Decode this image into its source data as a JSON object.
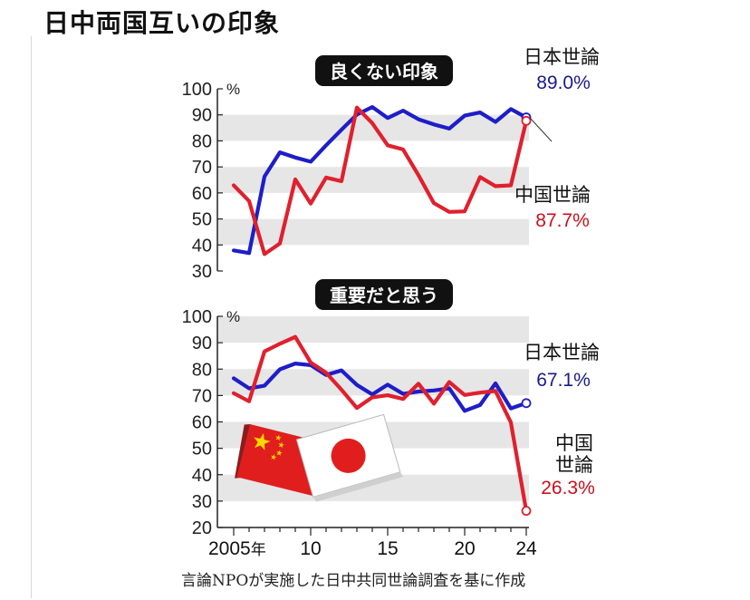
{
  "page": {
    "title": "日中両国互いの印象",
    "source": "言論NPOが実施した日中共同世論調査を基に作成"
  },
  "colors": {
    "japan": "#1e1ec8",
    "china": "#e0202e",
    "japan_text": "#1a1a8c",
    "china_text": "#c8101e",
    "band": "#e6e6e6",
    "badge": "#111111"
  },
  "chart_data": [
    {
      "type": "line",
      "title": "良くない印象",
      "y_unit": "%",
      "ylim": [
        30,
        100
      ],
      "yticks": [
        30,
        40,
        50,
        60,
        70,
        80,
        90,
        100
      ],
      "xlim": [
        2005,
        2024
      ],
      "grid": "alternating horizontal bands",
      "series": [
        {
          "name": "日本世論",
          "label_value": "89.0%",
          "points": [
            [
              2005,
              37.9
            ],
            [
              2006,
              36.9
            ],
            [
              2007,
              66.3
            ],
            [
              2008,
              75.6
            ],
            [
              2009,
              73.6
            ],
            [
              2010,
              72.0
            ],
            [
              2011,
              78.3
            ],
            [
              2012,
              84.3
            ],
            [
              2013,
              90.1
            ],
            [
              2014,
              93.0
            ],
            [
              2015,
              88.8
            ],
            [
              2016,
              91.6
            ],
            [
              2017,
              88.3
            ],
            [
              2018,
              86.3
            ],
            [
              2019,
              84.7
            ],
            [
              2020,
              89.7
            ],
            [
              2021,
              90.9
            ],
            [
              2022,
              87.3
            ],
            [
              2023,
              92.2
            ],
            [
              2024,
              89.0
            ]
          ]
        },
        {
          "name": "中国世論",
          "label_value": "87.7%",
          "points": [
            [
              2005,
              62.9
            ],
            [
              2006,
              56.9
            ],
            [
              2007,
              36.5
            ],
            [
              2008,
              40.6
            ],
            [
              2009,
              65.2
            ],
            [
              2010,
              55.9
            ],
            [
              2011,
              65.9
            ],
            [
              2012,
              64.5
            ],
            [
              2013,
              92.8
            ],
            [
              2014,
              86.8
            ],
            [
              2015,
              78.3
            ],
            [
              2016,
              76.7
            ],
            [
              2017,
              66.8
            ],
            [
              2018,
              56.1
            ],
            [
              2019,
              52.7
            ],
            [
              2020,
              52.9
            ],
            [
              2021,
              66.1
            ],
            [
              2022,
              62.6
            ],
            [
              2023,
              62.9
            ],
            [
              2024,
              87.7
            ]
          ]
        }
      ]
    },
    {
      "type": "line",
      "title": "重要だと思う",
      "y_unit": "%",
      "ylim": [
        20,
        100
      ],
      "yticks": [
        20,
        30,
        40,
        50,
        60,
        70,
        80,
        90,
        100
      ],
      "xlim": [
        2005,
        2024
      ],
      "xticks": [
        2005,
        2010,
        2015,
        2020,
        2024
      ],
      "xtick_labels": [
        "2005年",
        "10",
        "15",
        "20",
        "24"
      ],
      "grid": "alternating horizontal bands",
      "series": [
        {
          "name": "日本世論",
          "label_value": "67.1%",
          "points": [
            [
              2005,
              76.5
            ],
            [
              2006,
              72.7
            ],
            [
              2007,
              73.7
            ],
            [
              2008,
              79.9
            ],
            [
              2009,
              82.1
            ],
            [
              2010,
              81.5
            ],
            [
              2011,
              77.8
            ],
            [
              2012,
              79.5
            ],
            [
              2013,
              74.0
            ],
            [
              2014,
              70.4
            ],
            [
              2015,
              74.1
            ],
            [
              2016,
              70.6
            ],
            [
              2017,
              71.5
            ],
            [
              2018,
              71.9
            ],
            [
              2019,
              72.7
            ],
            [
              2020,
              64.2
            ],
            [
              2021,
              66.4
            ],
            [
              2022,
              74.6
            ],
            [
              2023,
              65.1
            ],
            [
              2024,
              67.1
            ]
          ]
        },
        {
          "name": "中国世論",
          "label_value": "26.3%",
          "points": [
            [
              2005,
              70.9
            ],
            [
              2006,
              67.8
            ],
            [
              2007,
              86.7
            ],
            [
              2008,
              89.6
            ],
            [
              2009,
              92.2
            ],
            [
              2010,
              82.5
            ],
            [
              2011,
              78.6
            ],
            [
              2012,
              72.2
            ],
            [
              2013,
              65.3
            ],
            [
              2014,
              69.3
            ],
            [
              2015,
              70.1
            ],
            [
              2016,
              68.7
            ],
            [
              2017,
              74.5
            ],
            [
              2018,
              66.9
            ],
            [
              2019,
              75.1
            ],
            [
              2020,
              70.2
            ],
            [
              2021,
              71.1
            ],
            [
              2022,
              71.7
            ],
            [
              2023,
              59.8
            ],
            [
              2024,
              26.3
            ]
          ]
        }
      ]
    }
  ]
}
